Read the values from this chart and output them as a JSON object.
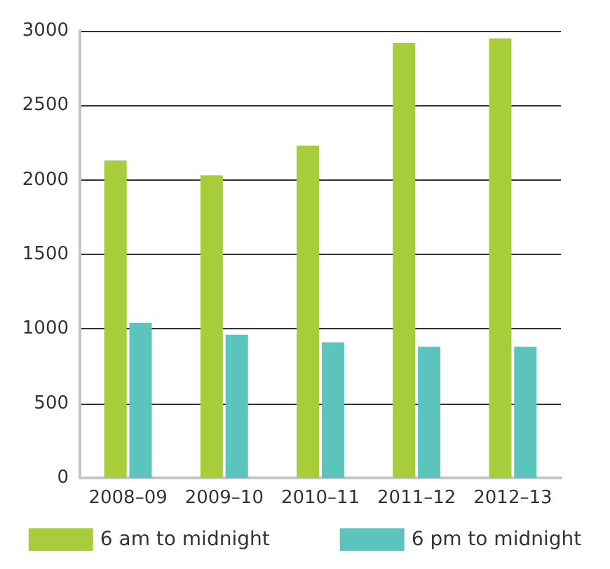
{
  "chart_data": {
    "type": "bar",
    "categories": [
      "2008–09",
      "2009–10",
      "2010–11",
      "2011–12",
      "2012–13"
    ],
    "series": [
      {
        "name": "6 am to midnight",
        "color": "#a8cd3a",
        "values": [
          2130,
          2030,
          2230,
          2920,
          2950
        ]
      },
      {
        "name": "6 pm to midnight",
        "color": "#5bc4bd",
        "values": [
          1040,
          960,
          910,
          880,
          880
        ]
      }
    ],
    "ylim": [
      0,
      3000
    ],
    "yticks": [
      0,
      500,
      1000,
      1500,
      2000,
      2500,
      3000
    ],
    "grid": "y",
    "legend": "bottom"
  }
}
